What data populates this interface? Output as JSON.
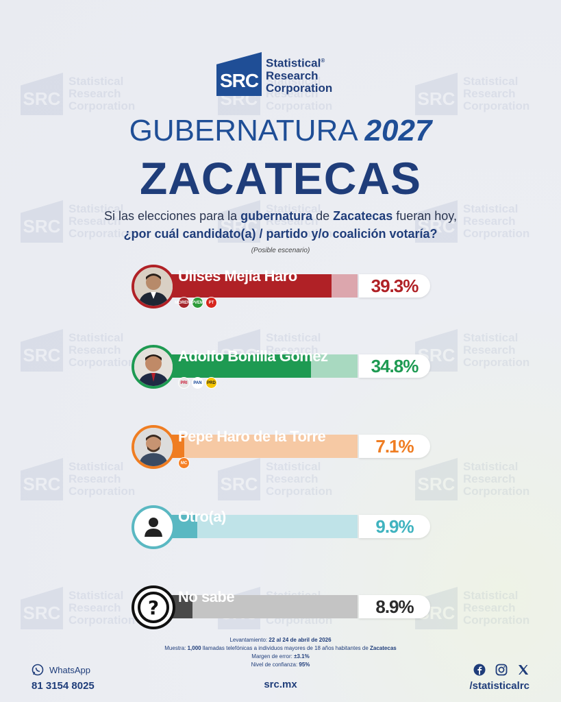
{
  "brand": {
    "logo_abbr": "SRC",
    "logo_line1": "Statistical",
    "logo_line2": "Research",
    "logo_line3": "Corporation",
    "registered": "®"
  },
  "header": {
    "title_word": "GUBERNATURA",
    "title_year": "2027",
    "state": "ZACATECAS"
  },
  "question": {
    "line1_a": "Si las elecciones para la ",
    "line1_b": "gubernatura",
    "line1_c": " de ",
    "line1_d": "Zacatecas",
    "line1_e": " fueran hoy,",
    "line2": "¿por cuál candidato(a) / partido y/o coalición votaría?",
    "scenario": "(Posible escenario)"
  },
  "chart_data": {
    "type": "bar",
    "categories": [
      "Ulises Mejía Haro",
      "Adolfo Bonilla Gómez",
      "Pepe Haro de la Torre",
      "Otro(a)",
      "No sabe"
    ],
    "values": [
      39.3,
      34.8,
      7.1,
      9.9,
      8.9
    ],
    "value_labels": [
      "39.3%",
      "34.8%",
      "7.1%",
      "9.9%",
      "8.9%"
    ],
    "colors": [
      "#b02126",
      "#1e9a52",
      "#ef7d22",
      "#5ab8c2",
      "#4a4a4a"
    ],
    "track_colors": [
      "#dca6ad",
      "#a8d9c0",
      "#f6c9a4",
      "#bfe3e8",
      "#c4c4c4"
    ],
    "text_colors": [
      "#b02126",
      "#1e9a52",
      "#ef7d22",
      "#3fb3bf",
      "#2b2b2b"
    ],
    "title": "",
    "xlabel": "",
    "ylabel": ""
  },
  "parties": {
    "ulises": [
      "MORENA",
      "PVEM",
      "PT"
    ],
    "adolfo": [
      "PRI",
      "PAN",
      "PRD"
    ],
    "pepe": [
      "MC"
    ]
  },
  "footer": {
    "survey_label": "Levantamiento: ",
    "survey_value": "22 al 24 de abril de 2026",
    "sample_label": "Muestra: ",
    "sample_count": "1,000",
    "sample_text": " llamadas telefónicas a individuos mayores de 18 años habitantes de ",
    "sample_place": "Zacatecas",
    "error_label": "Margen de error: ",
    "error_value": "±3.1%",
    "confidence_label": "Nivel de confianza: ",
    "confidence_value": "95%",
    "whatsapp_label": "WhatsApp",
    "whatsapp_number": "81 3154 8025",
    "website": "src.mx",
    "social_handle": "/statisticalrc"
  }
}
